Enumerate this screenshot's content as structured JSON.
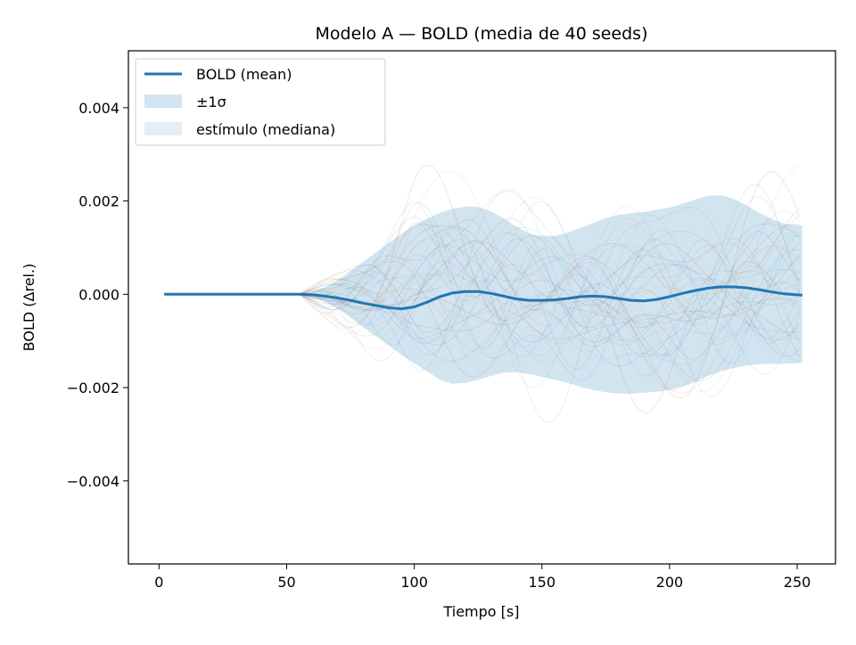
{
  "chart_data": {
    "type": "line",
    "title": "Modelo A — BOLD (media de 40 seeds)",
    "xlabel": "Tiempo [s]",
    "ylabel": "BOLD (Δrel.)",
    "xlim": [
      -12,
      265
    ],
    "ylim": [
      -0.00578,
      0.00522
    ],
    "xticks": [
      {
        "value": 0,
        "label": "0"
      },
      {
        "value": 50,
        "label": "50"
      },
      {
        "value": 100,
        "label": "100"
      },
      {
        "value": 150,
        "label": "150"
      },
      {
        "value": 200,
        "label": "200"
      },
      {
        "value": 250,
        "label": "250"
      }
    ],
    "yticks": [
      {
        "value": 0.004,
        "label": "0.004"
      },
      {
        "value": 0.002,
        "label": "0.002"
      },
      {
        "value": 0.0,
        "label": "0.000"
      },
      {
        "value": -0.002,
        "label": "−0.002"
      },
      {
        "value": -0.004,
        "label": "−0.004"
      }
    ],
    "grid": false,
    "legend_position": "top-left",
    "legend": [
      {
        "label": "BOLD (mean)",
        "kind": "line",
        "color": "#1f77b4"
      },
      {
        "label": "±1σ",
        "kind": "patch",
        "color": "#1f77b4",
        "opacity": 0.2
      },
      {
        "label": "estímulo (mediana)",
        "kind": "patch",
        "color": "#1f77b4",
        "opacity": 0.12
      }
    ],
    "colors": {
      "mean": "#1f77b4",
      "band": "#1f77b4",
      "band_opacity": 0.2
    },
    "series": [
      {
        "name": "BOLD (mean)",
        "kind": "line",
        "x": [
          2,
          10,
          20,
          30,
          40,
          50,
          55,
          60,
          65,
          70,
          75,
          80,
          85,
          90,
          95,
          100,
          105,
          110,
          115,
          120,
          125,
          130,
          135,
          140,
          145,
          150,
          155,
          160,
          165,
          170,
          175,
          180,
          185,
          190,
          195,
          200,
          205,
          210,
          215,
          220,
          225,
          230,
          235,
          240,
          245,
          252
        ],
        "y": [
          0,
          0,
          0,
          0,
          0,
          0,
          0,
          -1e-05,
          -4e-05,
          -8e-05,
          -0.00013,
          -0.00019,
          -0.00024,
          -0.00029,
          -0.00031,
          -0.00027,
          -0.00017,
          -5e-05,
          3e-05,
          6e-05,
          6e-05,
          2e-05,
          -4e-05,
          -0.0001,
          -0.00013,
          -0.00013,
          -0.00012,
          -9e-05,
          -5e-05,
          -4e-05,
          -5e-05,
          -9e-05,
          -0.00013,
          -0.00014,
          -0.00011,
          -5e-05,
          2e-05,
          8e-05,
          0.00013,
          0.00016,
          0.00016,
          0.00014,
          0.0001,
          5e-05,
          1e-05,
          -2e-05
        ]
      },
      {
        "name": "±1σ",
        "kind": "band",
        "x": [
          55,
          60,
          65,
          70,
          75,
          80,
          85,
          90,
          95,
          100,
          105,
          110,
          115,
          120,
          125,
          130,
          135,
          140,
          145,
          150,
          155,
          160,
          165,
          170,
          175,
          180,
          185,
          190,
          195,
          200,
          205,
          210,
          215,
          220,
          225,
          230,
          235,
          240,
          245,
          252
        ],
        "upper": [
          1e-05,
          5e-05,
          0.00015,
          0.0003,
          0.0005,
          0.0007,
          0.0009,
          0.0011,
          0.0013,
          0.00148,
          0.00162,
          0.00175,
          0.00183,
          0.00188,
          0.00187,
          0.00178,
          0.00163,
          0.00145,
          0.00131,
          0.00124,
          0.00125,
          0.00132,
          0.00142,
          0.00153,
          0.00163,
          0.0017,
          0.00174,
          0.00177,
          0.00181,
          0.00186,
          0.00194,
          0.00203,
          0.00211,
          0.00212,
          0.00205,
          0.00191,
          0.00175,
          0.00161,
          0.00151,
          0.00147
        ],
        "lower": [
          -1e-05,
          -5e-05,
          -0.00015,
          -0.0003,
          -0.0005,
          -0.0007,
          -0.0009,
          -0.0011,
          -0.0013,
          -0.00148,
          -0.00165,
          -0.00183,
          -0.00192,
          -0.0019,
          -0.00183,
          -0.00175,
          -0.00168,
          -0.00167,
          -0.00171,
          -0.00177,
          -0.00183,
          -0.0019,
          -0.00198,
          -0.00205,
          -0.0021,
          -0.00213,
          -0.00213,
          -0.00211,
          -0.00209,
          -0.00205,
          -0.00198,
          -0.00188,
          -0.00175,
          -0.00165,
          -0.00158,
          -0.00153,
          -0.0015,
          -0.00149,
          -0.00149,
          -0.00147
        ]
      }
    ],
    "trials_note_color": "#d0d0d0"
  }
}
